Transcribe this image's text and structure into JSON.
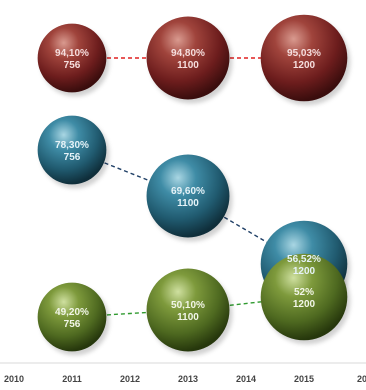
{
  "chart_data": {
    "type": "bubble",
    "title": "",
    "xlabel": "",
    "ylabel": "",
    "legend": "none",
    "grid": false,
    "x_ticks": [
      "2010",
      "2011",
      "2012",
      "2013",
      "2014",
      "2015",
      "20"
    ],
    "xlim": [
      2010,
      2016
    ],
    "series": [
      {
        "color": "#7a2424",
        "points": [
          {
            "x": 2011,
            "size": 756,
            "pct": "94,10%",
            "label_size": "756"
          },
          {
            "x": 2013,
            "size": 1100,
            "pct": "94,80%",
            "label_size": "1100"
          },
          {
            "x": 2015,
            "size": 1200,
            "pct": "95,03%",
            "label_size": "1200"
          }
        ]
      },
      {
        "color": "#2a6f86",
        "points": [
          {
            "x": 2011,
            "size": 756,
            "pct": "78,30%",
            "label_size": "756"
          },
          {
            "x": 2013,
            "size": 1100,
            "pct": "69,60%",
            "label_size": "1100"
          },
          {
            "x": 2015,
            "size": 1200,
            "pct": "56,52%",
            "label_size": "1200"
          }
        ]
      },
      {
        "color": "#5f7a2a",
        "points": [
          {
            "x": 2011,
            "size": 756,
            "pct": "49,20%",
            "label_size": "756"
          },
          {
            "x": 2013,
            "size": 1100,
            "pct": "50,10%",
            "label_size": "1100"
          },
          {
            "x": 2015,
            "size": 1200,
            "pct": "52%",
            "label_size": "1200"
          }
        ]
      }
    ]
  },
  "styles": {
    "red_line": "#e02020",
    "blue_line": "#1f3f66",
    "green_line": "#2f9a2f",
    "label_color": "#ffffff",
    "red_label_color": "#f6dede",
    "blue_label_color": "#e6f3f8",
    "green_label_color": "#f2f6e8"
  }
}
